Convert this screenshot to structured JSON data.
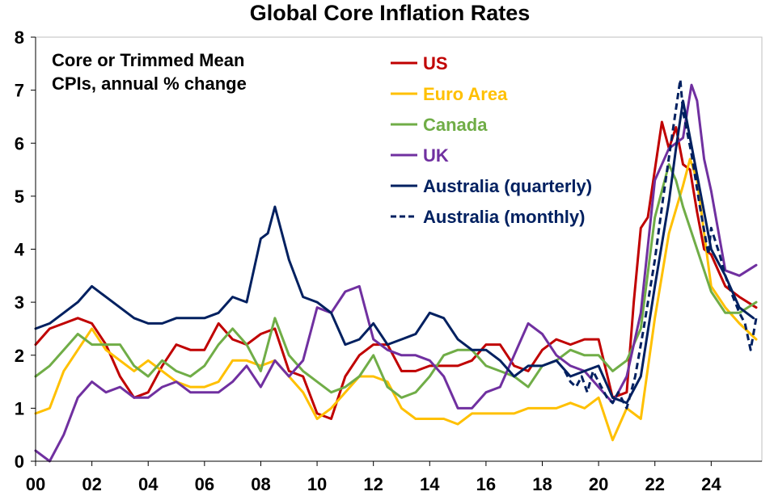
{
  "chart_data": {
    "type": "line",
    "title": "Global Core Inflation Rates",
    "annotation": [
      "Core or Trimmed Mean",
      "CPIs, annual % change"
    ],
    "xlabel": "",
    "ylabel": "",
    "xlim": [
      2000,
      2025.8
    ],
    "ylim": [
      0,
      8
    ],
    "x_ticks": [
      2000,
      2002,
      2004,
      2006,
      2008,
      2010,
      2012,
      2014,
      2016,
      2018,
      2020,
      2022,
      2024
    ],
    "x_tick_labels": [
      "00",
      "02",
      "04",
      "06",
      "08",
      "10",
      "12",
      "14",
      "16",
      "18",
      "20",
      "22",
      "24"
    ],
    "y_ticks": [
      0,
      1,
      2,
      3,
      4,
      5,
      6,
      7,
      8
    ],
    "y_tick_labels": [
      "0",
      "1",
      "2",
      "3",
      "4",
      "5",
      "6",
      "7",
      "8"
    ],
    "grid": false,
    "legend_position": "top-center",
    "series": [
      {
        "name": "US",
        "color": "#c00000",
        "dash": false,
        "x": [
          2000,
          2000.5,
          2001,
          2001.5,
          2002,
          2002.5,
          2003,
          2003.5,
          2004,
          2004.5,
          2005,
          2005.5,
          2006,
          2006.5,
          2007,
          2007.5,
          2008,
          2008.5,
          2009,
          2009.5,
          2010,
          2010.5,
          2011,
          2011.5,
          2012,
          2012.5,
          2013,
          2013.5,
          2014,
          2014.5,
          2015,
          2015.5,
          2016,
          2016.5,
          2017,
          2017.5,
          2018,
          2018.5,
          2019,
          2019.5,
          2020,
          2020.5,
          2021,
          2021.25,
          2021.5,
          2021.75,
          2022,
          2022.25,
          2022.5,
          2022.75,
          2023,
          2023.25,
          2023.5,
          2023.75,
          2024,
          2024.5,
          2025,
          2025.6
        ],
        "y": [
          2.2,
          2.5,
          2.6,
          2.7,
          2.6,
          2.2,
          1.6,
          1.2,
          1.3,
          1.8,
          2.2,
          2.1,
          2.1,
          2.6,
          2.3,
          2.2,
          2.4,
          2.5,
          1.7,
          1.6,
          0.9,
          0.8,
          1.6,
          2.0,
          2.2,
          2.2,
          1.7,
          1.7,
          1.8,
          1.8,
          1.8,
          1.9,
          2.2,
          2.2,
          1.8,
          1.7,
          2.1,
          2.3,
          2.2,
          2.3,
          2.3,
          1.2,
          1.3,
          3.0,
          4.4,
          4.6,
          5.5,
          6.4,
          5.9,
          6.3,
          5.6,
          5.5,
          4.7,
          4.0,
          3.9,
          3.3,
          3.1,
          2.9
        ]
      },
      {
        "name": "Euro Area",
        "color": "#ffc000",
        "dash": false,
        "x": [
          2000,
          2000.5,
          2001,
          2001.5,
          2002,
          2002.5,
          2003,
          2003.5,
          2004,
          2004.5,
          2005,
          2005.5,
          2006,
          2006.5,
          2007,
          2007.5,
          2008,
          2008.5,
          2009,
          2009.5,
          2010,
          2010.5,
          2011,
          2011.5,
          2012,
          2012.5,
          2013,
          2013.5,
          2014,
          2014.5,
          2015,
          2015.5,
          2016,
          2016.5,
          2017,
          2017.5,
          2018,
          2018.5,
          2019,
          2019.5,
          2020,
          2020.5,
          2021,
          2021.5,
          2022,
          2022.5,
          2023,
          2023.25,
          2023.5,
          2024,
          2024.5,
          2025,
          2025.6
        ],
        "y": [
          0.9,
          1.0,
          1.7,
          2.1,
          2.5,
          2.1,
          1.9,
          1.7,
          1.9,
          1.7,
          1.5,
          1.4,
          1.4,
          1.5,
          1.9,
          1.9,
          1.8,
          1.9,
          1.6,
          1.3,
          0.8,
          1.0,
          1.3,
          1.6,
          1.6,
          1.5,
          1.0,
          0.8,
          0.8,
          0.8,
          0.7,
          0.9,
          0.9,
          0.9,
          0.9,
          1.0,
          1.0,
          1.0,
          1.1,
          1.0,
          1.2,
          0.4,
          1.0,
          0.8,
          2.7,
          4.3,
          5.2,
          5.7,
          5.3,
          3.3,
          2.9,
          2.6,
          2.3
        ]
      },
      {
        "name": "Canada",
        "color": "#70ad47",
        "dash": false,
        "x": [
          2000,
          2000.5,
          2001,
          2001.5,
          2002,
          2002.5,
          2003,
          2003.5,
          2004,
          2004.5,
          2005,
          2005.5,
          2006,
          2006.5,
          2007,
          2007.5,
          2008,
          2008.5,
          2009,
          2009.5,
          2010,
          2010.5,
          2011,
          2011.5,
          2012,
          2012.5,
          2013,
          2013.5,
          2014,
          2014.5,
          2015,
          2015.5,
          2016,
          2016.5,
          2017,
          2017.5,
          2018,
          2018.5,
          2019,
          2019.5,
          2020,
          2020.5,
          2021,
          2021.5,
          2022,
          2022.5,
          2022.75,
          2023,
          2023.5,
          2024,
          2024.5,
          2025,
          2025.6
        ],
        "y": [
          1.6,
          1.8,
          2.1,
          2.4,
          2.2,
          2.2,
          2.2,
          1.8,
          1.6,
          1.9,
          1.7,
          1.6,
          1.8,
          2.2,
          2.5,
          2.2,
          1.7,
          2.7,
          2.0,
          1.7,
          1.5,
          1.3,
          1.4,
          1.6,
          2.0,
          1.4,
          1.2,
          1.3,
          1.6,
          2.0,
          2.1,
          2.1,
          1.8,
          1.7,
          1.6,
          1.4,
          1.8,
          1.9,
          2.1,
          2.0,
          2.0,
          1.7,
          1.9,
          2.5,
          4.6,
          5.6,
          5.3,
          4.8,
          4.0,
          3.2,
          2.8,
          2.8,
          3.0
        ]
      },
      {
        "name": "UK",
        "color": "#7030a0",
        "dash": false,
        "x": [
          2000,
          2000.5,
          2001,
          2001.5,
          2002,
          2002.5,
          2003,
          2003.5,
          2004,
          2004.5,
          2005,
          2005.5,
          2006,
          2006.5,
          2007,
          2007.5,
          2008,
          2008.5,
          2009,
          2009.5,
          2010,
          2010.5,
          2011,
          2011.5,
          2012,
          2012.5,
          2013,
          2013.5,
          2014,
          2014.5,
          2015,
          2015.5,
          2016,
          2016.5,
          2017,
          2017.5,
          2018,
          2018.5,
          2019,
          2019.5,
          2020,
          2020.5,
          2021,
          2021.5,
          2022,
          2022.5,
          2023,
          2023.3,
          2023.5,
          2023.75,
          2024,
          2024.5,
          2025,
          2025.6
        ],
        "y": [
          0.2,
          0.0,
          0.5,
          1.2,
          1.5,
          1.3,
          1.4,
          1.2,
          1.2,
          1.4,
          1.5,
          1.3,
          1.3,
          1.3,
          1.5,
          1.8,
          1.4,
          1.9,
          1.6,
          1.9,
          2.9,
          2.8,
          3.2,
          3.3,
          2.3,
          2.1,
          2.0,
          2.0,
          1.9,
          1.6,
          1.0,
          1.0,
          1.3,
          1.4,
          2.0,
          2.6,
          2.4,
          2.0,
          1.8,
          1.7,
          1.4,
          1.1,
          1.6,
          2.8,
          5.3,
          5.9,
          6.1,
          7.1,
          6.8,
          5.7,
          5.1,
          3.6,
          3.5,
          3.7
        ]
      },
      {
        "name": "Australia (quarterly)",
        "color": "#002060",
        "dash": false,
        "x": [
          2000,
          2000.5,
          2001,
          2001.5,
          2002,
          2002.5,
          2003,
          2003.5,
          2004,
          2004.5,
          2005,
          2005.5,
          2006,
          2006.5,
          2007,
          2007.5,
          2008,
          2008.25,
          2008.5,
          2008.75,
          2009,
          2009.5,
          2010,
          2010.5,
          2011,
          2011.5,
          2012,
          2012.5,
          2013,
          2013.5,
          2014,
          2014.5,
          2015,
          2015.5,
          2016,
          2016.5,
          2017,
          2017.5,
          2018,
          2018.5,
          2019,
          2019.5,
          2020,
          2020.5,
          2021,
          2021.5,
          2022,
          2022.5,
          2022.75,
          2023,
          2023.5,
          2024,
          2024.5,
          2025,
          2025.5
        ],
        "y": [
          2.5,
          2.6,
          2.8,
          3.0,
          3.3,
          3.1,
          2.9,
          2.7,
          2.6,
          2.6,
          2.7,
          2.7,
          2.7,
          2.8,
          3.1,
          3.0,
          4.2,
          4.3,
          4.8,
          4.3,
          3.8,
          3.1,
          3.0,
          2.8,
          2.2,
          2.3,
          2.6,
          2.2,
          2.3,
          2.4,
          2.8,
          2.7,
          2.3,
          2.1,
          2.1,
          1.9,
          1.6,
          1.8,
          1.8,
          1.9,
          1.6,
          1.7,
          1.8,
          1.2,
          1.1,
          1.6,
          3.3,
          4.9,
          5.9,
          6.8,
          5.4,
          4.0,
          3.5,
          2.9,
          2.7
        ]
      },
      {
        "name": "Australia (monthly)",
        "color": "#002060",
        "dash": true,
        "x": [
          2018.8,
          2019,
          2019.2,
          2019.4,
          2019.6,
          2019.8,
          2020,
          2020.3,
          2020.5,
          2020.7,
          2021,
          2021.3,
          2021.6,
          2022,
          2022.3,
          2022.6,
          2022.9,
          2023,
          2023.3,
          2023.6,
          2023.9,
          2024,
          2024.3,
          2024.5,
          2024.7,
          2025,
          2025.2,
          2025.4,
          2025.6
        ],
        "y": [
          1.7,
          1.5,
          1.4,
          1.6,
          1.3,
          1.7,
          1.5,
          1.2,
          1.1,
          1.3,
          1.0,
          1.6,
          2.5,
          3.8,
          5.0,
          6.1,
          7.2,
          6.6,
          5.8,
          4.8,
          3.9,
          4.4,
          3.9,
          3.5,
          3.2,
          2.8,
          2.6,
          2.1,
          2.7
        ]
      }
    ]
  }
}
